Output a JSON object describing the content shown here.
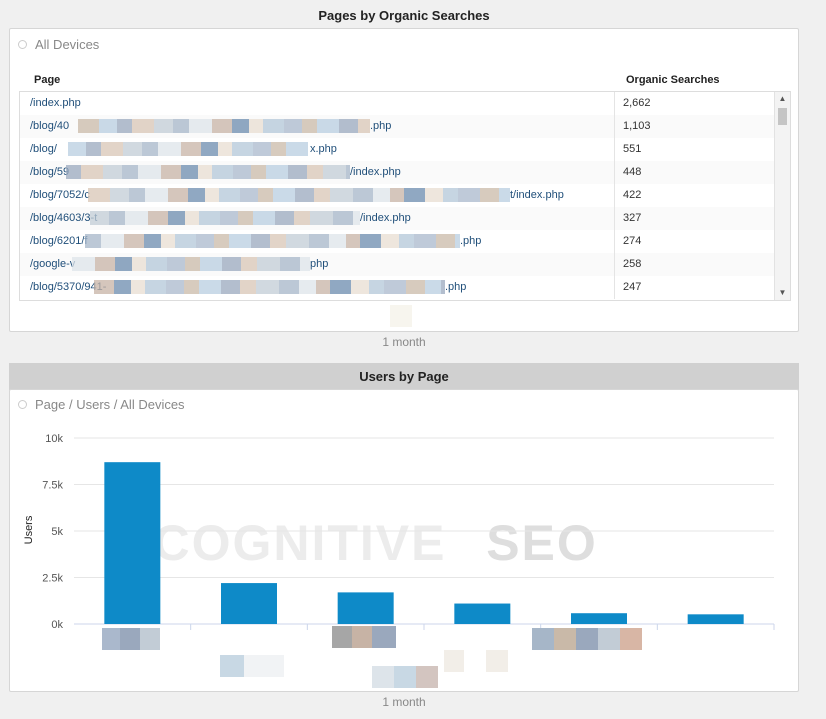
{
  "organic_section": {
    "title": "Pages by Organic Searches",
    "filter_label": "All Devices",
    "columns": [
      "Page",
      "Organic Searches"
    ],
    "rows": [
      {
        "page": "/index.php",
        "value": "2,662"
      },
      {
        "page": "/blog/40",
        "page_end": ".php",
        "value": "1,103"
      },
      {
        "page": "/blog/",
        "page_end": "x.php",
        "value": "551"
      },
      {
        "page": "/blog/59",
        "page_end": "/index.php",
        "value": "448"
      },
      {
        "page": "/blog/7052/c",
        "page_end": "t/index.php",
        "value": "422"
      },
      {
        "page": "/blog/4603/3-t",
        "page_end": "/index.php",
        "value": "327"
      },
      {
        "page": "/blog/6201/f",
        "page_end": ".php",
        "value": "274"
      },
      {
        "page": "/google-v",
        "page_end": "php",
        "value": "258"
      },
      {
        "page": "/blog/5370/941-",
        "page_end": ".php",
        "value": "247"
      }
    ],
    "period_label": "1 month"
  },
  "users_section": {
    "title": "Users by Page",
    "filter_label": "Page / Users / All Devices",
    "watermark_a": "COGNITIVE",
    "watermark_b": "SEO",
    "period_label": "1 month"
  },
  "chart_data": {
    "type": "bar",
    "ylabel": "Users",
    "xlabel": "",
    "ylim": [
      0,
      10000
    ],
    "yticks": [
      0,
      2500,
      5000,
      7500,
      10000
    ],
    "ytick_labels": [
      "0k",
      "2.5k",
      "5k",
      "7.5k",
      "10k"
    ],
    "grid": true,
    "bar_color": "#0e8ac8",
    "categories": [
      "",
      "",
      "",
      "",
      "",
      ""
    ],
    "values": [
      8700,
      2200,
      1700,
      1100,
      580,
      520
    ]
  },
  "colors": {
    "accent": "#0e8ac8",
    "link": "#1f4e79"
  }
}
